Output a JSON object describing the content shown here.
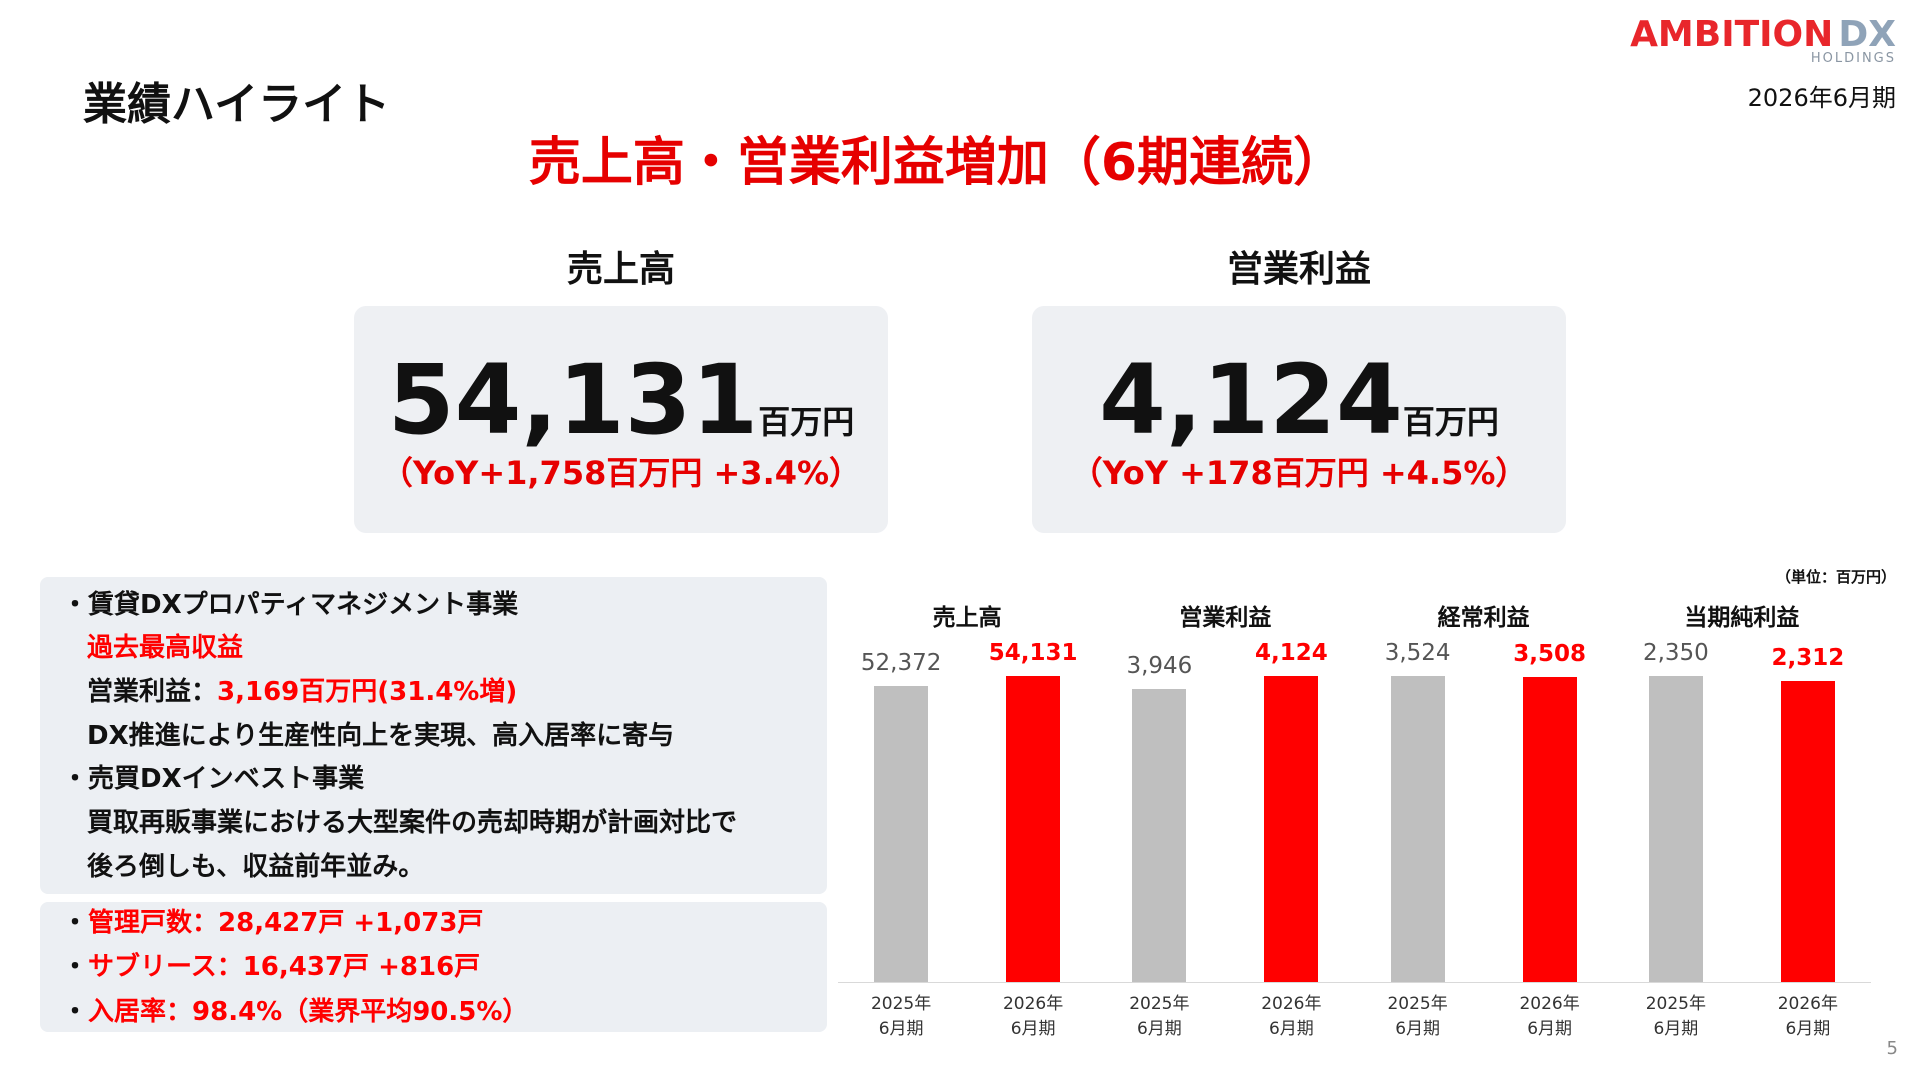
{
  "header": {
    "title": "業績ハイライト",
    "period": "2026年6月期",
    "logo": {
      "brand": "AMBITION",
      "suffix": "DX",
      "sub": "HOLDINGS"
    }
  },
  "headline": "売上高・営業利益増加（6期連続）",
  "kpis": [
    {
      "label": "売上高",
      "value": "54,131",
      "unit": "百万円",
      "yoy": "（YoY+1,758百万円 +3.4%）"
    },
    {
      "label": "営業利益",
      "value": "4,124",
      "unit": "百万円",
      "yoy": "（YoY +178百万円 +4.5%）"
    }
  ],
  "highlights": {
    "business": [
      {
        "heading": "・賃貸DXプロパティマネジメント事業",
        "lines": [
          "過去最高収益",
          "営業利益：",
          "3,169百万円(31.4%増)",
          "DX推進により生産性向上を実現、高入居率に寄与"
        ]
      },
      {
        "heading": "・売買DXインベスト事業",
        "lines": [
          "買取再販事業における大型案件の売却時期が計画対比で",
          "後ろ倒しも、収益前年並み。"
        ]
      }
    ],
    "bullet": "・",
    "metrics": [
      "管理戸数：28,427戸 +1,073戸",
      "サブリース：16,437戸 +816戸",
      "入居率：98.4%（業界平均90.5%）"
    ]
  },
  "chart_data": {
    "type": "bar",
    "note": "（単位：百万円）",
    "categories": [
      "売上高",
      "営業利益",
      "経常利益",
      "当期純利益"
    ],
    "series": [
      {
        "name": "2025年\n6月期",
        "color": "#bfbfbf",
        "values": [
          52372,
          3946,
          3524,
          2350
        ],
        "value_labels": [
          "52,372",
          "3,946",
          "3,524",
          "2,350"
        ]
      },
      {
        "name": "2026年\n6月期",
        "color": "#ff0000",
        "values": [
          54131,
          4124,
          3508,
          2312
        ],
        "value_labels": [
          "54,131",
          "4,124",
          "3,508",
          "2,312"
        ]
      }
    ]
  },
  "page_number": "5"
}
